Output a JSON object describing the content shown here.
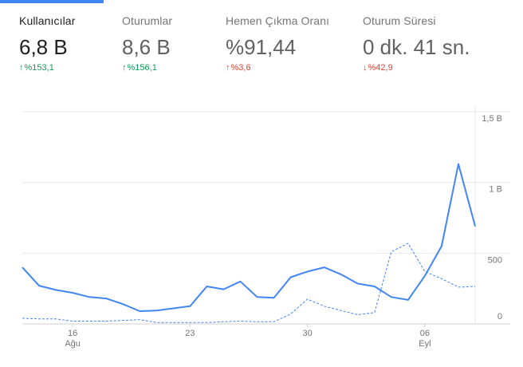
{
  "metrics": [
    {
      "label": "Kullanıcılar",
      "value": "6,8 B",
      "change": "%153,1",
      "direction": "up",
      "active": true
    },
    {
      "label": "Oturumlar",
      "value": "8,6 B",
      "change": "%156,1",
      "direction": "up",
      "active": false
    },
    {
      "label": "Hemen Çıkma Oranı",
      "value": "%91,44",
      "change": "%3,6",
      "direction": "up-bad",
      "active": false
    },
    {
      "label": "Oturum Süresi",
      "value": "0 dk. 41 sn.",
      "change": "%42,9",
      "direction": "down",
      "active": false
    }
  ],
  "icons": {
    "up": "arrow-up-icon",
    "down": "arrow-down-icon"
  },
  "colors": {
    "accent": "#4285f4",
    "positive": "#0f9d58",
    "negative": "#db4437"
  },
  "chart_data": {
    "type": "line",
    "x": [
      "13 Ağu",
      "14 Ağu",
      "15 Ağu",
      "16 Ağu",
      "17 Ağu",
      "18 Ağu",
      "19 Ağu",
      "20 Ağu",
      "21 Ağu",
      "22 Ağu",
      "23 Ağu",
      "24 Ağu",
      "25 Ağu",
      "26 Ağu",
      "27 Ağu",
      "28 Ağu",
      "29 Ağu",
      "30 Ağu",
      "31 Ağu",
      "01 Eyl",
      "02 Eyl",
      "03 Eyl",
      "04 Eyl",
      "05 Eyl",
      "06 Eyl",
      "07 Eyl",
      "08 Eyl",
      "09 Eyl"
    ],
    "series": [
      {
        "name": "",
        "style": "solid",
        "values": [
          400,
          270,
          240,
          220,
          190,
          180,
          140,
          90,
          95,
          110,
          125,
          265,
          245,
          300,
          190,
          185,
          330,
          370,
          400,
          350,
          285,
          265,
          190,
          170,
          340,
          550,
          1130,
          690
        ]
      },
      {
        "name": "",
        "style": "dashed",
        "values": [
          40,
          35,
          35,
          20,
          20,
          20,
          25,
          30,
          10,
          10,
          10,
          10,
          15,
          20,
          15,
          15,
          70,
          175,
          125,
          95,
          65,
          80,
          510,
          570,
          370,
          320,
          260,
          265
        ]
      }
    ],
    "xticks": [
      {
        "index": 3,
        "label": "16",
        "sublabel": "Ağu"
      },
      {
        "index": 10,
        "label": "23",
        "sublabel": ""
      },
      {
        "index": 17,
        "label": "30",
        "sublabel": ""
      },
      {
        "index": 24,
        "label": "06",
        "sublabel": "Eyl"
      }
    ],
    "yticks": [
      {
        "value": 0,
        "label": "0"
      },
      {
        "value": 500,
        "label": "500"
      },
      {
        "value": 1000,
        "label": "1 B"
      },
      {
        "value": 1500,
        "label": "1,5 B"
      }
    ],
    "ylim": [
      0,
      1500
    ],
    "grid": true,
    "color": "#4285f4"
  }
}
